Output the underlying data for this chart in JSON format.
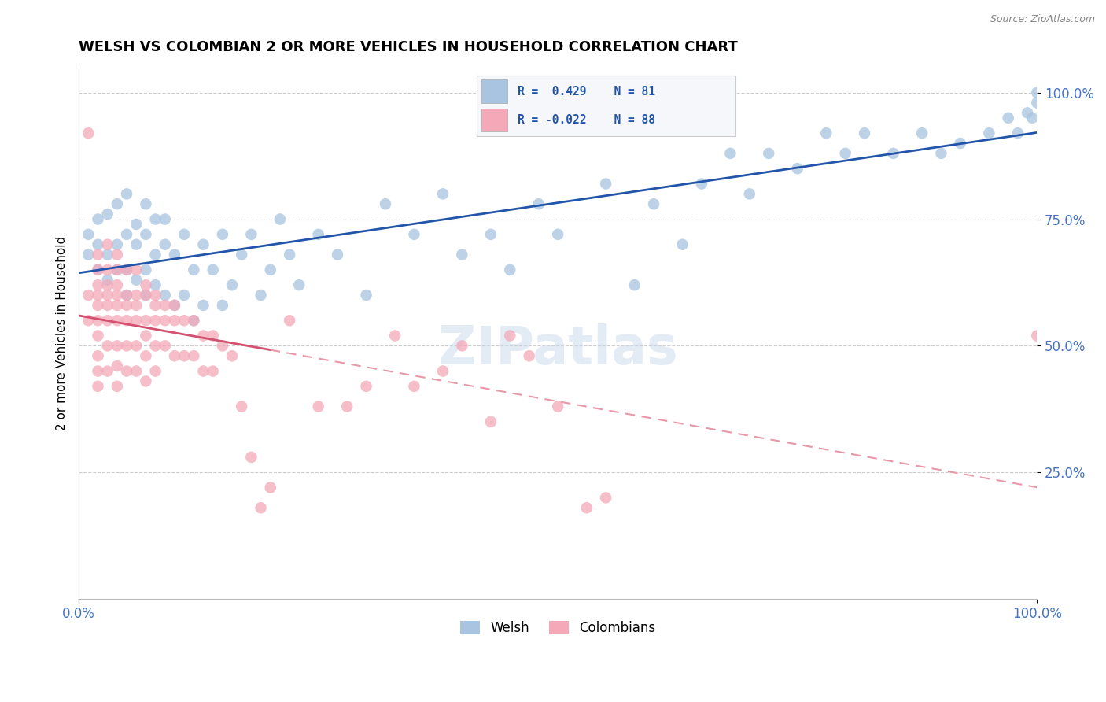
{
  "title": "WELSH VS COLOMBIAN 2 OR MORE VEHICLES IN HOUSEHOLD CORRELATION CHART",
  "source": "Source: ZipAtlas.com",
  "ylabel": "2 or more Vehicles in Household",
  "xlim": [
    0.0,
    1.0
  ],
  "ylim": [
    0.0,
    1.05
  ],
  "x_tick_labels": [
    "0.0%",
    "100.0%"
  ],
  "y_tick_labels": [
    "25.0%",
    "50.0%",
    "75.0%",
    "100.0%"
  ],
  "y_tick_values": [
    0.25,
    0.5,
    0.75,
    1.0
  ],
  "legend_welsh": "Welsh",
  "legend_colombians": "Colombians",
  "welsh_color": "#a8c4e0",
  "colombian_color": "#f4a8b8",
  "welsh_line_color": "#2255aa",
  "colombian_line_solid_color": "#d45070",
  "colombian_line_dashed_color": "#e898a8",
  "welsh_R": 0.429,
  "welsh_N": 81,
  "colombian_R": -0.022,
  "colombian_N": 88,
  "background_color": "#ffffff",
  "watermark": "ZIPatlas",
  "grid_color": "#cccccc",
  "welsh_x": [
    0.01,
    0.01,
    0.02,
    0.02,
    0.02,
    0.03,
    0.03,
    0.03,
    0.04,
    0.04,
    0.04,
    0.05,
    0.05,
    0.05,
    0.05,
    0.06,
    0.06,
    0.06,
    0.07,
    0.07,
    0.07,
    0.07,
    0.08,
    0.08,
    0.08,
    0.09,
    0.09,
    0.09,
    0.1,
    0.1,
    0.11,
    0.11,
    0.12,
    0.12,
    0.13,
    0.13,
    0.14,
    0.15,
    0.15,
    0.16,
    0.17,
    0.18,
    0.19,
    0.2,
    0.21,
    0.22,
    0.23,
    0.25,
    0.27,
    0.3,
    0.32,
    0.35,
    0.38,
    0.4,
    0.43,
    0.45,
    0.48,
    0.5,
    0.55,
    0.58,
    0.6,
    0.63,
    0.65,
    0.68,
    0.7,
    0.72,
    0.75,
    0.78,
    0.8,
    0.82,
    0.85,
    0.88,
    0.9,
    0.92,
    0.95,
    0.97,
    0.98,
    0.99,
    0.995,
    1.0,
    1.0
  ],
  "welsh_y": [
    0.68,
    0.72,
    0.65,
    0.7,
    0.75,
    0.63,
    0.68,
    0.76,
    0.65,
    0.7,
    0.78,
    0.6,
    0.65,
    0.72,
    0.8,
    0.63,
    0.7,
    0.74,
    0.6,
    0.65,
    0.72,
    0.78,
    0.62,
    0.68,
    0.75,
    0.6,
    0.7,
    0.75,
    0.58,
    0.68,
    0.6,
    0.72,
    0.55,
    0.65,
    0.58,
    0.7,
    0.65,
    0.58,
    0.72,
    0.62,
    0.68,
    0.72,
    0.6,
    0.65,
    0.75,
    0.68,
    0.62,
    0.72,
    0.68,
    0.6,
    0.78,
    0.72,
    0.8,
    0.68,
    0.72,
    0.65,
    0.78,
    0.72,
    0.82,
    0.62,
    0.78,
    0.7,
    0.82,
    0.88,
    0.8,
    0.88,
    0.85,
    0.92,
    0.88,
    0.92,
    0.88,
    0.92,
    0.88,
    0.9,
    0.92,
    0.95,
    0.92,
    0.96,
    0.95,
    0.98,
    1.0
  ],
  "colombian_x": [
    0.01,
    0.01,
    0.01,
    0.02,
    0.02,
    0.02,
    0.02,
    0.02,
    0.02,
    0.02,
    0.02,
    0.02,
    0.02,
    0.03,
    0.03,
    0.03,
    0.03,
    0.03,
    0.03,
    0.03,
    0.03,
    0.04,
    0.04,
    0.04,
    0.04,
    0.04,
    0.04,
    0.04,
    0.04,
    0.04,
    0.05,
    0.05,
    0.05,
    0.05,
    0.05,
    0.05,
    0.06,
    0.06,
    0.06,
    0.06,
    0.06,
    0.06,
    0.07,
    0.07,
    0.07,
    0.07,
    0.07,
    0.07,
    0.08,
    0.08,
    0.08,
    0.08,
    0.08,
    0.09,
    0.09,
    0.09,
    0.1,
    0.1,
    0.1,
    0.11,
    0.11,
    0.12,
    0.12,
    0.13,
    0.13,
    0.14,
    0.14,
    0.15,
    0.16,
    0.17,
    0.18,
    0.19,
    0.2,
    0.22,
    0.25,
    0.28,
    0.3,
    0.33,
    0.35,
    0.38,
    0.4,
    0.43,
    0.45,
    0.47,
    0.5,
    0.53,
    0.55,
    1.0
  ],
  "colombian_y": [
    0.92,
    0.6,
    0.55,
    0.68,
    0.65,
    0.62,
    0.6,
    0.58,
    0.55,
    0.52,
    0.48,
    0.45,
    0.42,
    0.7,
    0.65,
    0.62,
    0.6,
    0.58,
    0.55,
    0.5,
    0.45,
    0.68,
    0.65,
    0.62,
    0.6,
    0.58,
    0.55,
    0.5,
    0.46,
    0.42,
    0.65,
    0.6,
    0.58,
    0.55,
    0.5,
    0.45,
    0.65,
    0.6,
    0.58,
    0.55,
    0.5,
    0.45,
    0.62,
    0.6,
    0.55,
    0.52,
    0.48,
    0.43,
    0.6,
    0.58,
    0.55,
    0.5,
    0.45,
    0.58,
    0.55,
    0.5,
    0.58,
    0.55,
    0.48,
    0.55,
    0.48,
    0.55,
    0.48,
    0.52,
    0.45,
    0.52,
    0.45,
    0.5,
    0.48,
    0.38,
    0.28,
    0.18,
    0.22,
    0.55,
    0.38,
    0.38,
    0.42,
    0.52,
    0.42,
    0.45,
    0.5,
    0.35,
    0.52,
    0.48,
    0.38,
    0.18,
    0.2,
    0.52
  ]
}
